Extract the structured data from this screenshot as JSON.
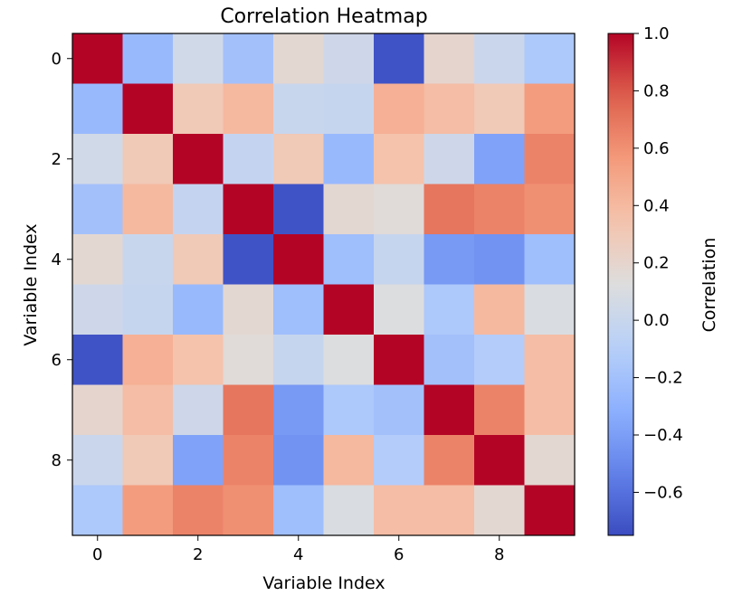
{
  "chart_data": {
    "type": "heatmap",
    "title": "Correlation Heatmap",
    "xlabel": "Variable Index",
    "ylabel": "Variable Index",
    "colorbar_label": "Correlation",
    "colormap": "coolwarm",
    "vmin": -0.75,
    "vmax": 1.0,
    "x_ticks": [
      0,
      2,
      4,
      6,
      8
    ],
    "y_ticks": [
      0,
      2,
      4,
      6,
      8
    ],
    "colorbar_ticks": [
      -0.6,
      -0.4,
      -0.2,
      0.0,
      0.2,
      0.4,
      0.6,
      0.8,
      1.0
    ],
    "colorbar_tick_labels": [
      "−0.6",
      "−0.4",
      "−0.2",
      "0.0",
      "0.2",
      "0.4",
      "0.6",
      "0.8",
      "1.0"
    ],
    "matrix": [
      [
        1.0,
        -0.25,
        0.05,
        -0.2,
        0.18,
        0.03,
        -0.72,
        0.2,
        0.01,
        -0.15
      ],
      [
        -0.25,
        1.0,
        0.3,
        0.4,
        0.0,
        -0.01,
        0.45,
        0.38,
        0.3,
        0.55
      ],
      [
        0.05,
        0.3,
        1.0,
        -0.02,
        0.3,
        -0.25,
        0.35,
        0.03,
        -0.38,
        0.65
      ],
      [
        -0.2,
        0.4,
        -0.02,
        1.0,
        -0.72,
        0.18,
        0.15,
        0.7,
        0.65,
        0.6
      ],
      [
        0.18,
        0.0,
        0.3,
        -0.72,
        1.0,
        -0.22,
        -0.01,
        -0.42,
        -0.45,
        -0.22
      ],
      [
        0.03,
        -0.01,
        -0.25,
        0.18,
        -0.22,
        1.0,
        0.12,
        -0.15,
        0.4,
        0.1
      ],
      [
        -0.72,
        0.45,
        0.35,
        0.15,
        -0.01,
        0.12,
        1.0,
        -0.2,
        -0.12,
        0.38
      ],
      [
        0.2,
        0.38,
        0.03,
        0.7,
        -0.42,
        -0.15,
        -0.2,
        1.0,
        0.65,
        0.38
      ],
      [
        0.01,
        0.3,
        -0.38,
        0.65,
        -0.45,
        0.4,
        -0.12,
        0.65,
        1.0,
        0.18
      ],
      [
        -0.15,
        0.55,
        0.65,
        0.6,
        -0.22,
        0.1,
        0.38,
        0.38,
        0.18,
        1.0
      ]
    ]
  }
}
